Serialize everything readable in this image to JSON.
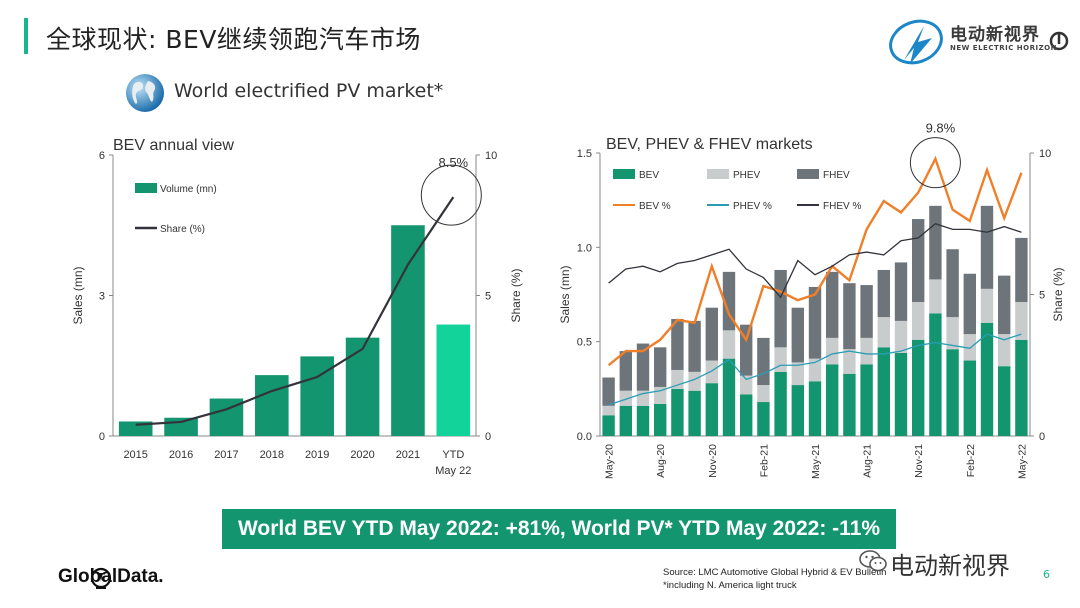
{
  "header": {
    "title": "全球现状: BEV继续领跑汽车市场"
  },
  "logo": {
    "cn": "电动新视界",
    "en": "NEW ELECTRIC HORIZON"
  },
  "subtitle": "World electrified PV market*",
  "colors": {
    "accent": "#18b68d",
    "bev": "#13956f",
    "ytd": "#12d49a",
    "phev": "#c9cccd",
    "fhev": "#6d757b",
    "bev_line": "#f07f2a",
    "phev_line": "#2a9db5",
    "share_line": "#33343b"
  },
  "banner": {
    "text": "World BEV YTD May 2022: +81%, World PV* YTD May 2022: -11%"
  },
  "footer": {
    "brand": "GlobalData.",
    "source_line1": "Source: LMC Automotive Global Hybrid & EV Bulletin",
    "source_line2": "*including N. America light truck",
    "watermark": "电动新视界",
    "page": "6"
  },
  "chart_data": [
    {
      "type": "bar",
      "title": "BEV annual view",
      "categories": [
        "2015",
        "2016",
        "2017",
        "2018",
        "2019",
        "2020",
        "2021",
        "YTD May 22"
      ],
      "category_lines": [
        [
          "2015"
        ],
        [
          "2016"
        ],
        [
          "2017"
        ],
        [
          "2018"
        ],
        [
          "2019"
        ],
        [
          "2020"
        ],
        [
          "2021"
        ],
        [
          "YTD",
          "May 22"
        ]
      ],
      "series": [
        {
          "name": "Volume (mn)",
          "values": [
            0.31,
            0.39,
            0.8,
            1.3,
            1.7,
            2.1,
            4.5,
            2.38
          ]
        },
        {
          "name": "Share (%)",
          "type": "line",
          "axis": "right",
          "values": [
            0.4,
            0.5,
            0.95,
            1.6,
            2.1,
            3.1,
            6.1,
            8.5
          ]
        }
      ],
      "annotation": "8.5%",
      "ylabel": "Sales (mn)",
      "ylim": [
        0,
        6
      ],
      "yticks": [
        "0",
        "3",
        "6"
      ],
      "y2label": "Share (%)",
      "y2lim": [
        0,
        10
      ],
      "y2ticks": [
        "0",
        "5",
        "10"
      ]
    },
    {
      "type": "bar",
      "stacked": true,
      "title": "BEV, PHEV & FHEV markets",
      "x": [
        "May-20",
        "Jun-20",
        "Jul-20",
        "Aug-20",
        "Sep-20",
        "Oct-20",
        "Nov-20",
        "Dec-20",
        "Jan-21",
        "Feb-21",
        "Mar-21",
        "Apr-21",
        "May-21",
        "Jun-21",
        "Jul-21",
        "Aug-21",
        "Sep-21",
        "Oct-21",
        "Nov-21",
        "Dec-21",
        "Jan-22",
        "Feb-22",
        "Mar-22",
        "Apr-22",
        "May-22"
      ],
      "tick_labels": [
        "May-20",
        "Aug-20",
        "Nov-20",
        "Feb-21",
        "May-21",
        "Aug-21",
        "Nov-21",
        "Feb-22",
        "May-22"
      ],
      "series": [
        {
          "name": "BEV",
          "values": [
            0.11,
            0.16,
            0.16,
            0.17,
            0.25,
            0.24,
            0.28,
            0.41,
            0.22,
            0.18,
            0.34,
            0.27,
            0.29,
            0.38,
            0.33,
            0.38,
            0.47,
            0.44,
            0.51,
            0.65,
            0.46,
            0.4,
            0.6,
            0.37,
            0.51
          ]
        },
        {
          "name": "PHEV",
          "values": [
            0.05,
            0.08,
            0.08,
            0.09,
            0.1,
            0.1,
            0.12,
            0.15,
            0.1,
            0.09,
            0.13,
            0.12,
            0.12,
            0.14,
            0.13,
            0.14,
            0.16,
            0.17,
            0.2,
            0.18,
            0.17,
            0.14,
            0.18,
            0.17,
            0.2
          ]
        },
        {
          "name": "FHEV",
          "values": [
            0.15,
            0.21,
            0.25,
            0.21,
            0.27,
            0.27,
            0.28,
            0.31,
            0.27,
            0.25,
            0.41,
            0.29,
            0.38,
            0.35,
            0.35,
            0.28,
            0.25,
            0.31,
            0.44,
            0.39,
            0.36,
            0.32,
            0.44,
            0.31,
            0.34
          ]
        },
        {
          "name": "BEV %",
          "type": "line",
          "axis": "right",
          "values": [
            2.5,
            3.0,
            3.0,
            3.4,
            4.1,
            4.0,
            6.0,
            4.3,
            3.4,
            5.3,
            5.1,
            4.8,
            5.0,
            6.0,
            5.5,
            7.3,
            8.3,
            7.9,
            8.6,
            9.8,
            8.0,
            7.6,
            9.4,
            7.7,
            9.3
          ]
        },
        {
          "name": "PHEV %",
          "type": "line",
          "axis": "right",
          "values": [
            1.1,
            1.3,
            1.5,
            1.6,
            1.8,
            2.0,
            2.3,
            2.7,
            2.0,
            2.2,
            2.5,
            2.5,
            2.6,
            2.9,
            3.0,
            2.9,
            2.9,
            3.0,
            3.2,
            3.3,
            3.2,
            3.1,
            3.6,
            3.4,
            3.6
          ]
        },
        {
          "name": "FHEV %",
          "type": "line",
          "axis": "right",
          "values": [
            5.4,
            5.9,
            6.0,
            5.8,
            6.1,
            6.2,
            6.4,
            6.6,
            5.9,
            5.6,
            4.9,
            6.2,
            5.7,
            6.0,
            6.4,
            6.5,
            6.4,
            6.9,
            7.0,
            7.5,
            7.3,
            7.3,
            7.2,
            7.4,
            7.2
          ]
        }
      ],
      "annotation": "9.8%",
      "ylabel": "Sales (mn)",
      "ylim": [
        0,
        1.5
      ],
      "yticks": [
        "0.0",
        "0.5",
        "1.0",
        "1.5"
      ],
      "y2label": "Share (%)",
      "y2lim": [
        0,
        10
      ],
      "y2ticks": [
        "0",
        "5",
        "10"
      ]
    }
  ]
}
